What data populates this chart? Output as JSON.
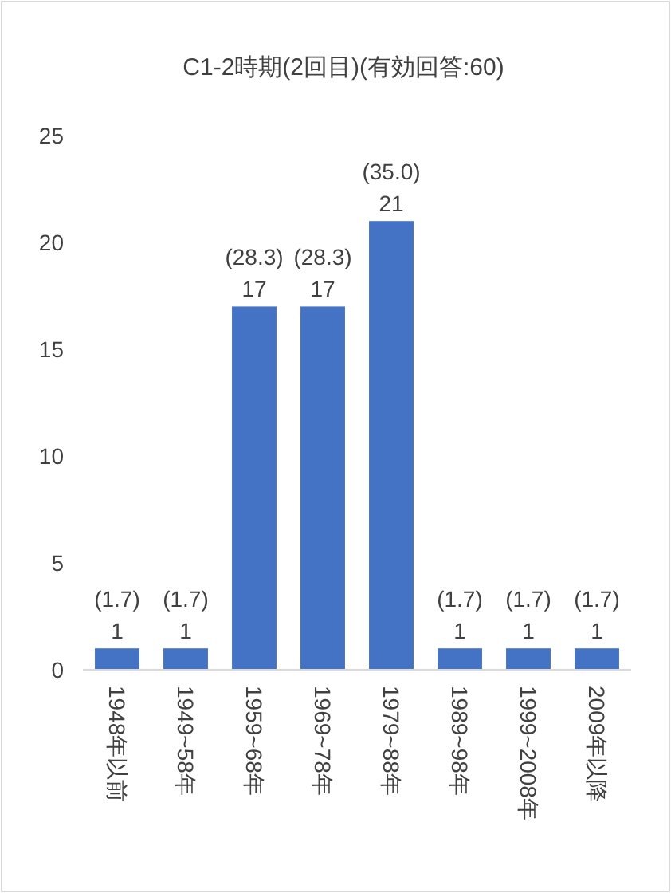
{
  "chart_data": {
    "type": "bar",
    "title": "C1-2時期(2回目)(有効回答:60)",
    "categories": [
      "1948年以前",
      "1949~58年",
      "1959~68年",
      "1969~78年",
      "1979~88年",
      "1989~98年",
      "1999~2008年",
      "2009年以降"
    ],
    "values": [
      1,
      1,
      17,
      17,
      21,
      1,
      1,
      1
    ],
    "value_labels": [
      "(1.7)\n1",
      "(1.7)\n1",
      "(28.3)\n17",
      "(28.3)\n17",
      "(35.0)\n21",
      "(1.7)\n1",
      "(1.7)\n1",
      "(1.7)\n1"
    ],
    "color": "#4472c4",
    "ylim": [
      0,
      25
    ],
    "yticks": [
      0,
      5,
      10,
      15,
      20,
      25
    ]
  }
}
